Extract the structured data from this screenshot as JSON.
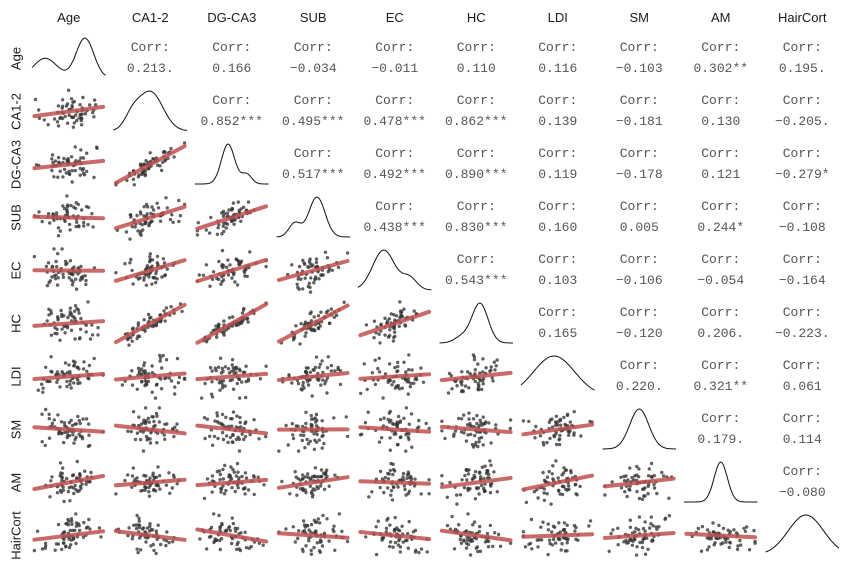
{
  "chart_data": {
    "type": "scatter",
    "kind": "correlation pair-plot matrix",
    "variables": [
      "Age",
      "CA1-2",
      "DG-CA3",
      "SUB",
      "EC",
      "HC",
      "LDI",
      "SM",
      "AM",
      "HairCort"
    ],
    "upper_header": "Corr:",
    "correlations": [
      {
        "row": "Age",
        "col": "CA1-2",
        "value": 0.213,
        "label": "0.213."
      },
      {
        "row": "Age",
        "col": "DG-CA3",
        "value": 0.166,
        "label": "0.166"
      },
      {
        "row": "Age",
        "col": "SUB",
        "value": -0.034,
        "label": "−0.034"
      },
      {
        "row": "Age",
        "col": "EC",
        "value": -0.011,
        "label": "−0.011"
      },
      {
        "row": "Age",
        "col": "HC",
        "value": 0.11,
        "label": "0.110"
      },
      {
        "row": "Age",
        "col": "LDI",
        "value": 0.116,
        "label": "0.116"
      },
      {
        "row": "Age",
        "col": "SM",
        "value": -0.103,
        "label": "−0.103"
      },
      {
        "row": "Age",
        "col": "AM",
        "value": 0.302,
        "label": "0.302**"
      },
      {
        "row": "Age",
        "col": "HairCort",
        "value": 0.195,
        "label": "0.195."
      },
      {
        "row": "CA1-2",
        "col": "DG-CA3",
        "value": 0.852,
        "label": "0.852***"
      },
      {
        "row": "CA1-2",
        "col": "SUB",
        "value": 0.495,
        "label": "0.495***"
      },
      {
        "row": "CA1-2",
        "col": "EC",
        "value": 0.478,
        "label": "0.478***"
      },
      {
        "row": "CA1-2",
        "col": "HC",
        "value": 0.862,
        "label": "0.862***"
      },
      {
        "row": "CA1-2",
        "col": "LDI",
        "value": 0.139,
        "label": "0.139"
      },
      {
        "row": "CA1-2",
        "col": "SM",
        "value": -0.181,
        "label": "−0.181"
      },
      {
        "row": "CA1-2",
        "col": "AM",
        "value": 0.13,
        "label": "0.130"
      },
      {
        "row": "CA1-2",
        "col": "HairCort",
        "value": -0.205,
        "label": "−0.205."
      },
      {
        "row": "DG-CA3",
        "col": "SUB",
        "value": 0.517,
        "label": "0.517***"
      },
      {
        "row": "DG-CA3",
        "col": "EC",
        "value": 0.492,
        "label": "0.492***"
      },
      {
        "row": "DG-CA3",
        "col": "HC",
        "value": 0.89,
        "label": "0.890***"
      },
      {
        "row": "DG-CA3",
        "col": "LDI",
        "value": 0.119,
        "label": "0.119"
      },
      {
        "row": "DG-CA3",
        "col": "SM",
        "value": -0.178,
        "label": "−0.178"
      },
      {
        "row": "DG-CA3",
        "col": "AM",
        "value": 0.121,
        "label": "0.121"
      },
      {
        "row": "DG-CA3",
        "col": "HairCort",
        "value": -0.279,
        "label": "−0.279*"
      },
      {
        "row": "SUB",
        "col": "EC",
        "value": 0.438,
        "label": "0.438***"
      },
      {
        "row": "SUB",
        "col": "HC",
        "value": 0.83,
        "label": "0.830***"
      },
      {
        "row": "SUB",
        "col": "LDI",
        "value": 0.16,
        "label": "0.160"
      },
      {
        "row": "SUB",
        "col": "SM",
        "value": 0.005,
        "label": "0.005"
      },
      {
        "row": "SUB",
        "col": "AM",
        "value": 0.244,
        "label": "0.244*"
      },
      {
        "row": "SUB",
        "col": "HairCort",
        "value": -0.108,
        "label": "−0.108"
      },
      {
        "row": "EC",
        "col": "HC",
        "value": 0.543,
        "label": "0.543***"
      },
      {
        "row": "EC",
        "col": "LDI",
        "value": 0.103,
        "label": "0.103"
      },
      {
        "row": "EC",
        "col": "SM",
        "value": -0.106,
        "label": "−0.106"
      },
      {
        "row": "EC",
        "col": "AM",
        "value": -0.054,
        "label": "−0.054"
      },
      {
        "row": "EC",
        "col": "HairCort",
        "value": -0.164,
        "label": "−0.164"
      },
      {
        "row": "HC",
        "col": "LDI",
        "value": 0.165,
        "label": "0.165"
      },
      {
        "row": "HC",
        "col": "SM",
        "value": -0.12,
        "label": "−0.120"
      },
      {
        "row": "HC",
        "col": "AM",
        "value": 0.206,
        "label": "0.206."
      },
      {
        "row": "HC",
        "col": "HairCort",
        "value": -0.223,
        "label": "−0.223."
      },
      {
        "row": "LDI",
        "col": "SM",
        "value": 0.22,
        "label": "0.220."
      },
      {
        "row": "LDI",
        "col": "AM",
        "value": 0.321,
        "label": "0.321**"
      },
      {
        "row": "LDI",
        "col": "HairCort",
        "value": 0.061,
        "label": "0.061"
      },
      {
        "row": "SM",
        "col": "AM",
        "value": 0.179,
        "label": "0.179."
      },
      {
        "row": "SM",
        "col": "HairCort",
        "value": 0.114,
        "label": "0.114"
      },
      {
        "row": "AM",
        "col": "HairCort",
        "value": -0.08,
        "label": "−0.080"
      }
    ],
    "diagonal": "density",
    "lower": "scatter with linear fit",
    "grid": false,
    "colors": {
      "points": "#333333",
      "fit_line": "#c0504d",
      "text": "#555555",
      "density": "#111111"
    }
  }
}
